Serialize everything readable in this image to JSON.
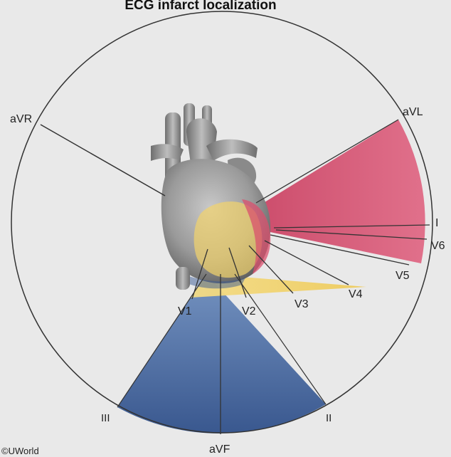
{
  "title": "ECG infarct localization",
  "leads": {
    "aVR": "aVR",
    "aVL": "aVL",
    "I": "I",
    "V6": "V6",
    "V5": "V5",
    "V4": "V4",
    "V3": "V3",
    "V2": "V2",
    "V1": "V1",
    "II": "II",
    "III": "III",
    "aVF": "aVF"
  },
  "copyright": "©UWorld",
  "colors": {
    "lateral": "#d9506e",
    "anterior": "#f2d36b",
    "inferior": "#3a5a94",
    "heart": "#8f8f8f",
    "background": "#e9e9e9"
  }
}
